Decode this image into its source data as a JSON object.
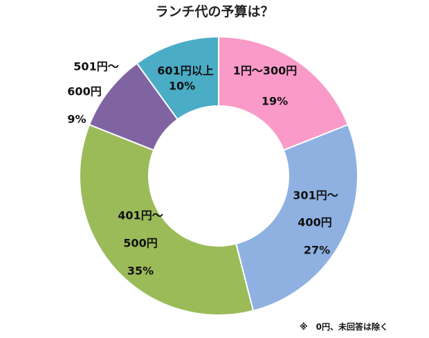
{
  "chart_data": {
    "type": "pie",
    "donut": true,
    "title": "ランチ代の予算は？",
    "slices": [
      {
        "label": [
          "1円～300円"
        ],
        "value": 19,
        "value_label": "19%",
        "color": "#f99ac8"
      },
      {
        "label": [
          "301円～",
          "400円"
        ],
        "value": 27,
        "value_label": "27%",
        "color": "#8eb1e1"
      },
      {
        "label": [
          "401円～",
          "500円"
        ],
        "value": 35,
        "value_label": "35%",
        "color": "#9bbb59"
      },
      {
        "label": [
          "501円～",
          "600円"
        ],
        "value": 9,
        "value_label": "9%",
        "color": "#8064a2"
      },
      {
        "label": [
          "601円以上"
        ],
        "value": 10,
        "value_label": "10%",
        "color": "#4bacc6"
      }
    ],
    "start": "top",
    "direction": "clockwise",
    "legend": "none",
    "note": "※　0円、未回答は除く"
  }
}
